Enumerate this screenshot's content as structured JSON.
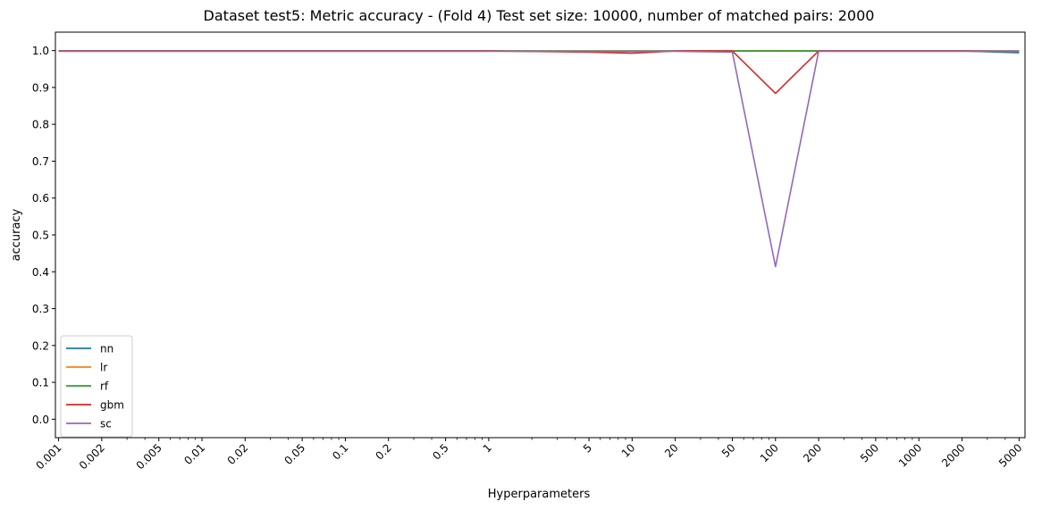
{
  "chart_data": {
    "type": "line",
    "title": "Dataset test5: Metric accuracy - (Fold 4) Test set size: 10000, number of matched pairs: 2000",
    "xlabel": "Hyperparameters",
    "ylabel": "accuracy",
    "x_scale": "log",
    "xlim": [
      0.00095,
      5500
    ],
    "ylim": [
      -0.05,
      1.05
    ],
    "x_ticks": [
      0.001,
      0.002,
      0.005,
      0.01,
      0.02,
      0.05,
      0.1,
      0.2,
      0.5,
      1,
      5,
      10,
      20,
      50,
      100,
      200,
      500,
      1000,
      2000,
      5000
    ],
    "x_tick_labels": [
      "0.001",
      "0.002",
      "0.005",
      "0.01",
      "0.02",
      "0.05",
      "0.1",
      "0.2",
      "0.5",
      "1",
      "5",
      "10",
      "20",
      "50",
      "100",
      "200",
      "500",
      "1000",
      "2000",
      "5000"
    ],
    "y_ticks": [
      0.0,
      0.1,
      0.2,
      0.3,
      0.4,
      0.5,
      0.6,
      0.7,
      0.8,
      0.9,
      1.0
    ],
    "y_tick_labels": [
      "0.0",
      "0.1",
      "0.2",
      "0.3",
      "0.4",
      "0.5",
      "0.6",
      "0.7",
      "0.8",
      "0.9",
      "1.0"
    ],
    "grid": false,
    "legend_position": "lower-left",
    "series": [
      {
        "name": "nn",
        "color": "#1f77b4",
        "x": [
          0.001,
          0.01,
          0.1,
          1,
          10,
          20,
          50,
          100,
          200,
          1000,
          2000,
          5000
        ],
        "y": [
          0.999,
          0.999,
          0.999,
          0.999,
          0.998,
          0.999,
          0.999,
          0.999,
          0.999,
          0.999,
          0.999,
          0.994
        ]
      },
      {
        "name": "lr",
        "color": "#ff7f0e",
        "x": [
          0.001,
          0.01,
          0.1,
          1,
          10,
          20,
          50,
          100,
          200,
          1000,
          2000,
          5000
        ],
        "y": [
          0.999,
          0.999,
          0.999,
          0.999,
          0.999,
          0.999,
          0.999,
          0.999,
          0.999,
          0.999,
          0.999,
          0.999
        ]
      },
      {
        "name": "rf",
        "color": "#2ca02c",
        "x": [
          0.001,
          0.01,
          0.1,
          1,
          10,
          20,
          50,
          100,
          200,
          1000,
          2000,
          5000
        ],
        "y": [
          0.999,
          0.999,
          0.999,
          0.999,
          0.999,
          0.999,
          0.999,
          0.999,
          0.999,
          0.999,
          0.999,
          0.999
        ]
      },
      {
        "name": "gbm",
        "color": "#d62728",
        "x": [
          0.001,
          0.01,
          0.1,
          1,
          5,
          10,
          20,
          50,
          100,
          200,
          1000,
          2000,
          5000
        ],
        "y": [
          0.999,
          0.999,
          0.999,
          0.999,
          0.996,
          0.993,
          0.999,
          0.999,
          0.884,
          0.999,
          0.999,
          0.999,
          0.998
        ]
      },
      {
        "name": "sc",
        "color": "#9467bd",
        "x": [
          0.001,
          0.01,
          0.1,
          1,
          10,
          20,
          50,
          100,
          200,
          1000,
          2000,
          5000
        ],
        "y": [
          0.998,
          0.998,
          0.998,
          0.998,
          0.998,
          0.998,
          0.996,
          0.414,
          0.998,
          0.998,
          0.998,
          0.998
        ]
      }
    ]
  }
}
